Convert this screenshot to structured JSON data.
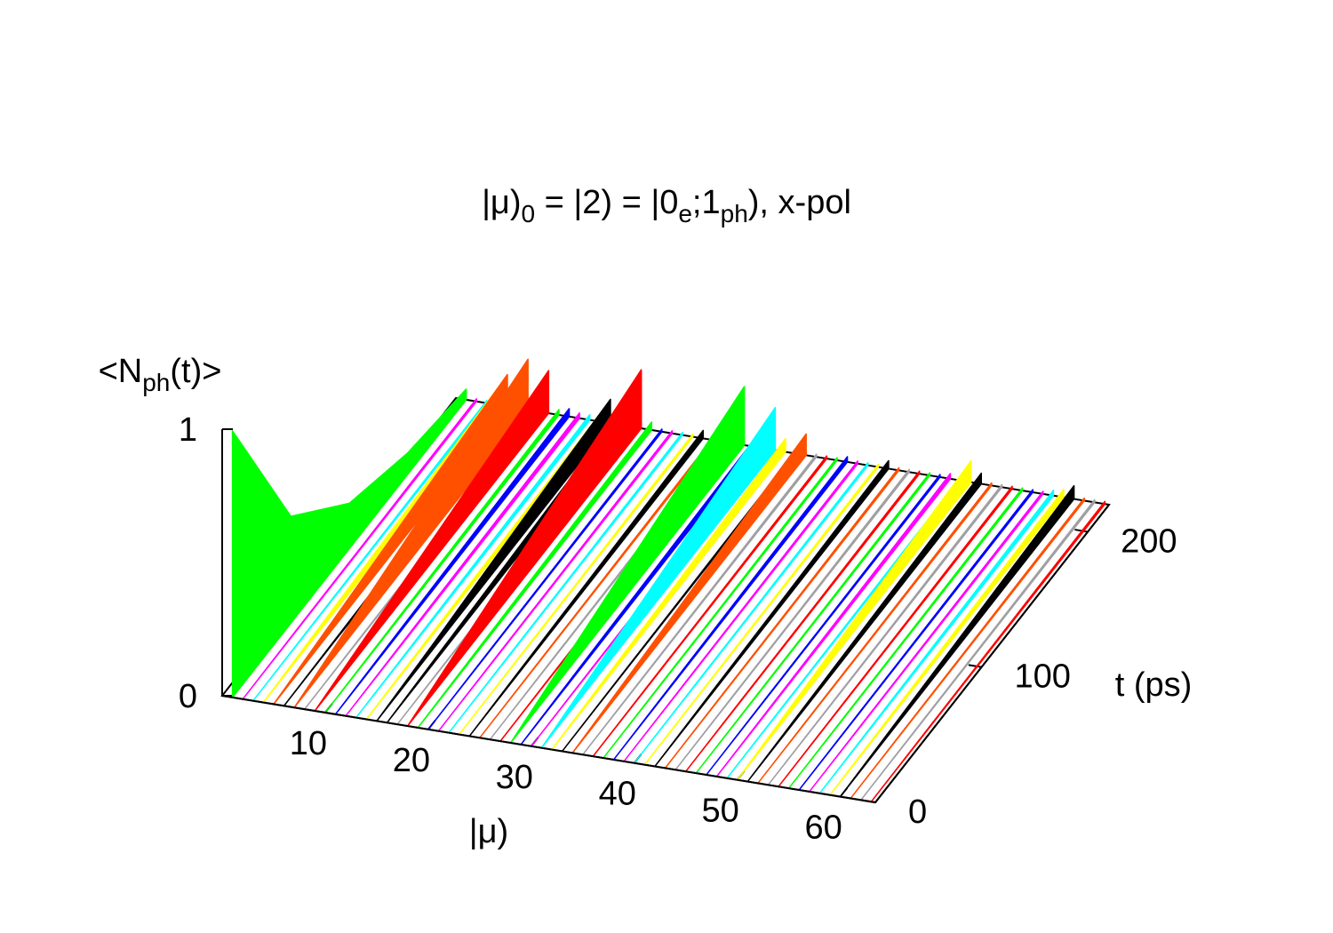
{
  "chart_data": {
    "type": "waterfall3d",
    "title": [
      "|μ)",
      "0",
      " = |2) = |0",
      "e",
      ";1",
      "ph",
      "), x-pol"
    ],
    "xlabel": "|μ)",
    "ylabel": "t (ps)",
    "zlabel": [
      "<N",
      "ph",
      "(t)>"
    ],
    "xlim": [
      0,
      63.4
    ],
    "ylim": [
      0,
      220
    ],
    "zlim": [
      0,
      1
    ],
    "xticks": [
      10,
      20,
      30,
      40,
      50,
      60
    ],
    "yticks": [
      0,
      100,
      200
    ],
    "zticks": [
      0,
      1
    ],
    "x": [
      0,
      55,
      110,
      165,
      220
    ],
    "series": [
      {
        "mu": 1,
        "color": "#00ff00",
        "values": [
          1,
          0.4,
          0.17,
          0.08,
          0.04
        ]
      },
      {
        "mu": 2,
        "color": "#ff00ff",
        "values": [
          0,
          0.003,
          0.005,
          0.008,
          0.01
        ]
      },
      {
        "mu": 3,
        "color": "#00ffff",
        "values": [
          0,
          0.003,
          0.005,
          0.008,
          0.01
        ]
      },
      {
        "mu": 4,
        "color": "#ffff00",
        "values": [
          0,
          0.015,
          0.03,
          0.045,
          0.06
        ]
      },
      {
        "mu": 5,
        "color": "#ff5000",
        "values": [
          0,
          0.03,
          0.06,
          0.09,
          0.12
        ]
      },
      {
        "mu": 6,
        "color": "#000000",
        "values": [
          0,
          0.005,
          0.01,
          0.015,
          0.02
        ]
      },
      {
        "mu": 7,
        "color": "#ff5000",
        "values": [
          0,
          0.05,
          0.1,
          0.14,
          0.19
        ]
      },
      {
        "mu": 8,
        "color": "#a0a0a4",
        "values": [
          0,
          0.003,
          0.005,
          0.008,
          0.01
        ]
      },
      {
        "mu": 9,
        "color": "#ff0000",
        "values": [
          0,
          0.04,
          0.08,
          0.12,
          0.16
        ]
      },
      {
        "mu": 10,
        "color": "#00ff00",
        "values": [
          0,
          0.005,
          0.01,
          0.015,
          0.02
        ]
      },
      {
        "mu": 11,
        "color": "#0000ff",
        "values": [
          0,
          0.008,
          0.015,
          0.023,
          0.03
        ]
      },
      {
        "mu": 12,
        "color": "#ff00ff",
        "values": [
          0,
          0.005,
          0.01,
          0.015,
          0.02
        ]
      },
      {
        "mu": 13,
        "color": "#00ffff",
        "values": [
          0,
          0.005,
          0.01,
          0.015,
          0.02
        ]
      },
      {
        "mu": 14,
        "color": "#ffff00",
        "values": [
          0,
          0.008,
          0.015,
          0.023,
          0.03
        ]
      },
      {
        "mu": 15,
        "color": "#000000",
        "values": [
          0,
          0.02,
          0.045,
          0.07,
          0.09
        ]
      },
      {
        "mu": 16,
        "color": "#000000",
        "values": [
          0,
          0.013,
          0.025,
          0.038,
          0.05
        ]
      },
      {
        "mu": 17,
        "color": "#a0a0a4",
        "values": [
          0,
          0.003,
          0.005,
          0.008,
          0.01
        ]
      },
      {
        "mu": 18,
        "color": "#ff0000",
        "values": [
          0,
          0.055,
          0.11,
          0.165,
          0.22
        ]
      },
      {
        "mu": 19,
        "color": "#00ff00",
        "values": [
          0,
          0.008,
          0.015,
          0.023,
          0.03
        ]
      },
      {
        "mu": 20,
        "color": "#0000ff",
        "values": [
          0,
          0.003,
          0.005,
          0.008,
          0.01
        ]
      },
      {
        "mu": 21,
        "color": "#ff00ff",
        "values": [
          0,
          0.003,
          0.005,
          0.008,
          0.01
        ]
      },
      {
        "mu": 22,
        "color": "#00ffff",
        "values": [
          0,
          0.003,
          0.005,
          0.008,
          0.01
        ]
      },
      {
        "mu": 23,
        "color": "#ffff00",
        "values": [
          0,
          0.003,
          0.005,
          0.008,
          0.01
        ]
      },
      {
        "mu": 24,
        "color": "#000000",
        "values": [
          0,
          0.008,
          0.015,
          0.023,
          0.03
        ]
      },
      {
        "mu": 25,
        "color": "#ff5000",
        "values": [
          0,
          0.003,
          0.005,
          0.008,
          0.01
        ]
      },
      {
        "mu": 26,
        "color": "#a0a0a4",
        "values": [
          0,
          0.003,
          0.005,
          0.008,
          0.01
        ]
      },
      {
        "mu": 27,
        "color": "#ff0000",
        "values": [
          0,
          0.003,
          0.005,
          0.008,
          0.01
        ]
      },
      {
        "mu": 28,
        "color": "#00ff00",
        "values": [
          0,
          0.055,
          0.11,
          0.165,
          0.22
        ]
      },
      {
        "mu": 29,
        "color": "#0000ff",
        "values": [
          0,
          0.008,
          0.015,
          0.023,
          0.03
        ]
      },
      {
        "mu": 30,
        "color": "#ff00ff",
        "values": [
          0,
          0.003,
          0.005,
          0.008,
          0.01
        ]
      },
      {
        "mu": 31,
        "color": "#00ffff",
        "values": [
          0,
          0.04,
          0.08,
          0.12,
          0.16
        ]
      },
      {
        "mu": 32,
        "color": "#ffff00",
        "values": [
          0,
          0.013,
          0.025,
          0.038,
          0.05
        ]
      },
      {
        "mu": 33,
        "color": "#000000",
        "values": [
          0,
          0.003,
          0.005,
          0.008,
          0.01
        ]
      },
      {
        "mu": 34,
        "color": "#ff5000",
        "values": [
          0,
          0.02,
          0.04,
          0.06,
          0.08
        ]
      },
      {
        "mu": 35,
        "color": "#a0a0a4",
        "values": [
          0,
          0.003,
          0.005,
          0.008,
          0.01
        ]
      },
      {
        "mu": 36,
        "color": "#ff0000",
        "values": [
          0,
          0.003,
          0.005,
          0.008,
          0.01
        ]
      },
      {
        "mu": 37,
        "color": "#00ff00",
        "values": [
          0,
          0.003,
          0.005,
          0.008,
          0.01
        ]
      },
      {
        "mu": 38,
        "color": "#0000ff",
        "values": [
          0,
          0.005,
          0.01,
          0.015,
          0.02
        ]
      },
      {
        "mu": 39,
        "color": "#ff00ff",
        "values": [
          0,
          0.003,
          0.005,
          0.008,
          0.01
        ]
      },
      {
        "mu": 40,
        "color": "#00ffff",
        "values": [
          0,
          0.003,
          0.005,
          0.008,
          0.01
        ]
      },
      {
        "mu": 41,
        "color": "#ffff00",
        "values": [
          0,
          0.003,
          0.005,
          0.008,
          0.01
        ]
      },
      {
        "mu": 42,
        "color": "#000000",
        "values": [
          0,
          0.008,
          0.015,
          0.023,
          0.03
        ]
      },
      {
        "mu": 43,
        "color": "#ff5000",
        "values": [
          0,
          0.003,
          0.005,
          0.008,
          0.01
        ]
      },
      {
        "mu": 44,
        "color": "#a0a0a4",
        "values": [
          0,
          0.003,
          0.005,
          0.008,
          0.01
        ]
      },
      {
        "mu": 45,
        "color": "#ff0000",
        "values": [
          0,
          0.003,
          0.005,
          0.008,
          0.01
        ]
      },
      {
        "mu": 46,
        "color": "#00ff00",
        "values": [
          0,
          0.003,
          0.005,
          0.008,
          0.01
        ]
      },
      {
        "mu": 47,
        "color": "#0000ff",
        "values": [
          0,
          0.003,
          0.005,
          0.008,
          0.01
        ]
      },
      {
        "mu": 48,
        "color": "#ff00ff",
        "values": [
          0,
          0.005,
          0.01,
          0.015,
          0.02
        ]
      },
      {
        "mu": 49,
        "color": "#00ffff",
        "values": [
          0,
          0.003,
          0.005,
          0.008,
          0.01
        ]
      },
      {
        "mu": 50,
        "color": "#ffff00",
        "values": [
          0,
          0.02,
          0.04,
          0.06,
          0.08
        ]
      },
      {
        "mu": 51,
        "color": "#000000",
        "values": [
          0,
          0.01,
          0.02,
          0.03,
          0.04
        ]
      },
      {
        "mu": 52,
        "color": "#ff5000",
        "values": [
          0,
          0.003,
          0.005,
          0.008,
          0.01
        ]
      },
      {
        "mu": 53,
        "color": "#a0a0a4",
        "values": [
          0,
          0.003,
          0.005,
          0.008,
          0.01
        ]
      },
      {
        "mu": 54,
        "color": "#ff0000",
        "values": [
          0,
          0.003,
          0.005,
          0.008,
          0.01
        ]
      },
      {
        "mu": 55,
        "color": "#00ff00",
        "values": [
          0,
          0.003,
          0.005,
          0.008,
          0.01
        ]
      },
      {
        "mu": 56,
        "color": "#0000ff",
        "values": [
          0,
          0.003,
          0.005,
          0.008,
          0.01
        ]
      },
      {
        "mu": 57,
        "color": "#ff00ff",
        "values": [
          0,
          0.003,
          0.005,
          0.008,
          0.01
        ]
      },
      {
        "mu": 58,
        "color": "#00ffff",
        "values": [
          0,
          0.005,
          0.01,
          0.015,
          0.02
        ]
      },
      {
        "mu": 59,
        "color": "#ffff00",
        "values": [
          0,
          0.008,
          0.015,
          0.023,
          0.03
        ]
      },
      {
        "mu": 60,
        "color": "#000000",
        "values": [
          0,
          0.013,
          0.025,
          0.038,
          0.05
        ]
      },
      {
        "mu": 61,
        "color": "#ff5000",
        "values": [
          0,
          0.003,
          0.005,
          0.008,
          0.01
        ]
      },
      {
        "mu": 62,
        "color": "#a0a0a4",
        "values": [
          0,
          0.003,
          0.005,
          0.008,
          0.01
        ]
      },
      {
        "mu": 63,
        "color": "#ff0000",
        "values": [
          0,
          0.003,
          0.005,
          0.008,
          0.01
        ]
      }
    ]
  }
}
